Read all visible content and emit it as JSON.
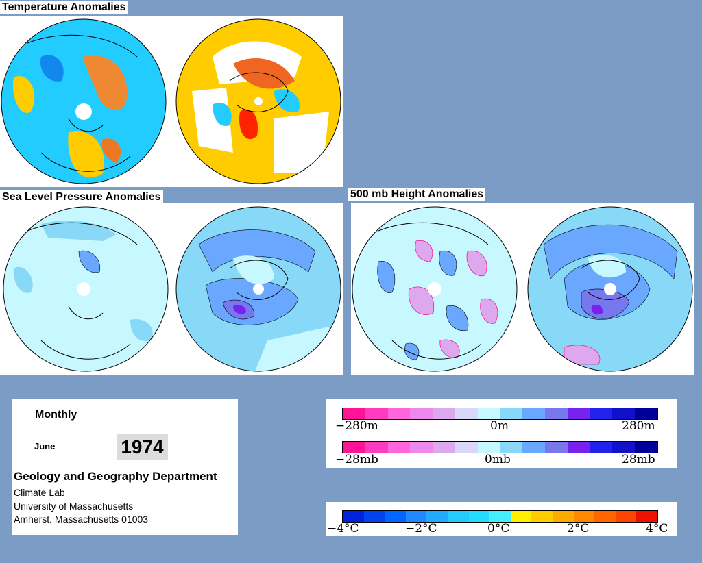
{
  "titles": {
    "temperature": "Temperature Anomalies",
    "slp": "Sea Level Pressure Anomalies",
    "height": "500 mb Height Anomalies"
  },
  "info": {
    "period": "Monthly",
    "month": "June",
    "year": "1974",
    "department": "Geology and Geography Department",
    "lab": "Climate Lab",
    "university": "University of Massachusetts",
    "address": "Amherst, Massachusetts 01003"
  },
  "legend_height": {
    "low": "−280m",
    "mid": "0m",
    "high": "280m",
    "colors": [
      "#ff1493",
      "#ff3cc0",
      "#ff66dd",
      "#ee88ee",
      "#dda8ee",
      "#d8d8f8",
      "#c8f8ff",
      "#88d8f8",
      "#6aa8ff",
      "#7777ee",
      "#7722ee",
      "#2222ee",
      "#1111cc",
      "#000099"
    ]
  },
  "legend_pressure": {
    "low": "−28mb",
    "mid": "0mb",
    "high": "28mb",
    "colors": [
      "#ff1493",
      "#ff3cc0",
      "#ff66dd",
      "#ee88ee",
      "#dda8ee",
      "#d8d8f8",
      "#c8f8ff",
      "#88d8f8",
      "#6aa8ff",
      "#7777ee",
      "#7722ee",
      "#2222ee",
      "#1111cc",
      "#000099"
    ]
  },
  "legend_temperature": {
    "ticks": [
      "−4°C",
      "−2°C",
      "0°C",
      "2°C",
      "4°C"
    ],
    "colors": [
      "#0022dd",
      "#0044ee",
      "#0066ff",
      "#2288ff",
      "#22aaff",
      "#22ccff",
      "#22ddff",
      "#44eeff",
      "#ffee00",
      "#ffcc00",
      "#ffaa00",
      "#ff8800",
      "#ff6600",
      "#ff4400",
      "#ee1100"
    ]
  }
}
